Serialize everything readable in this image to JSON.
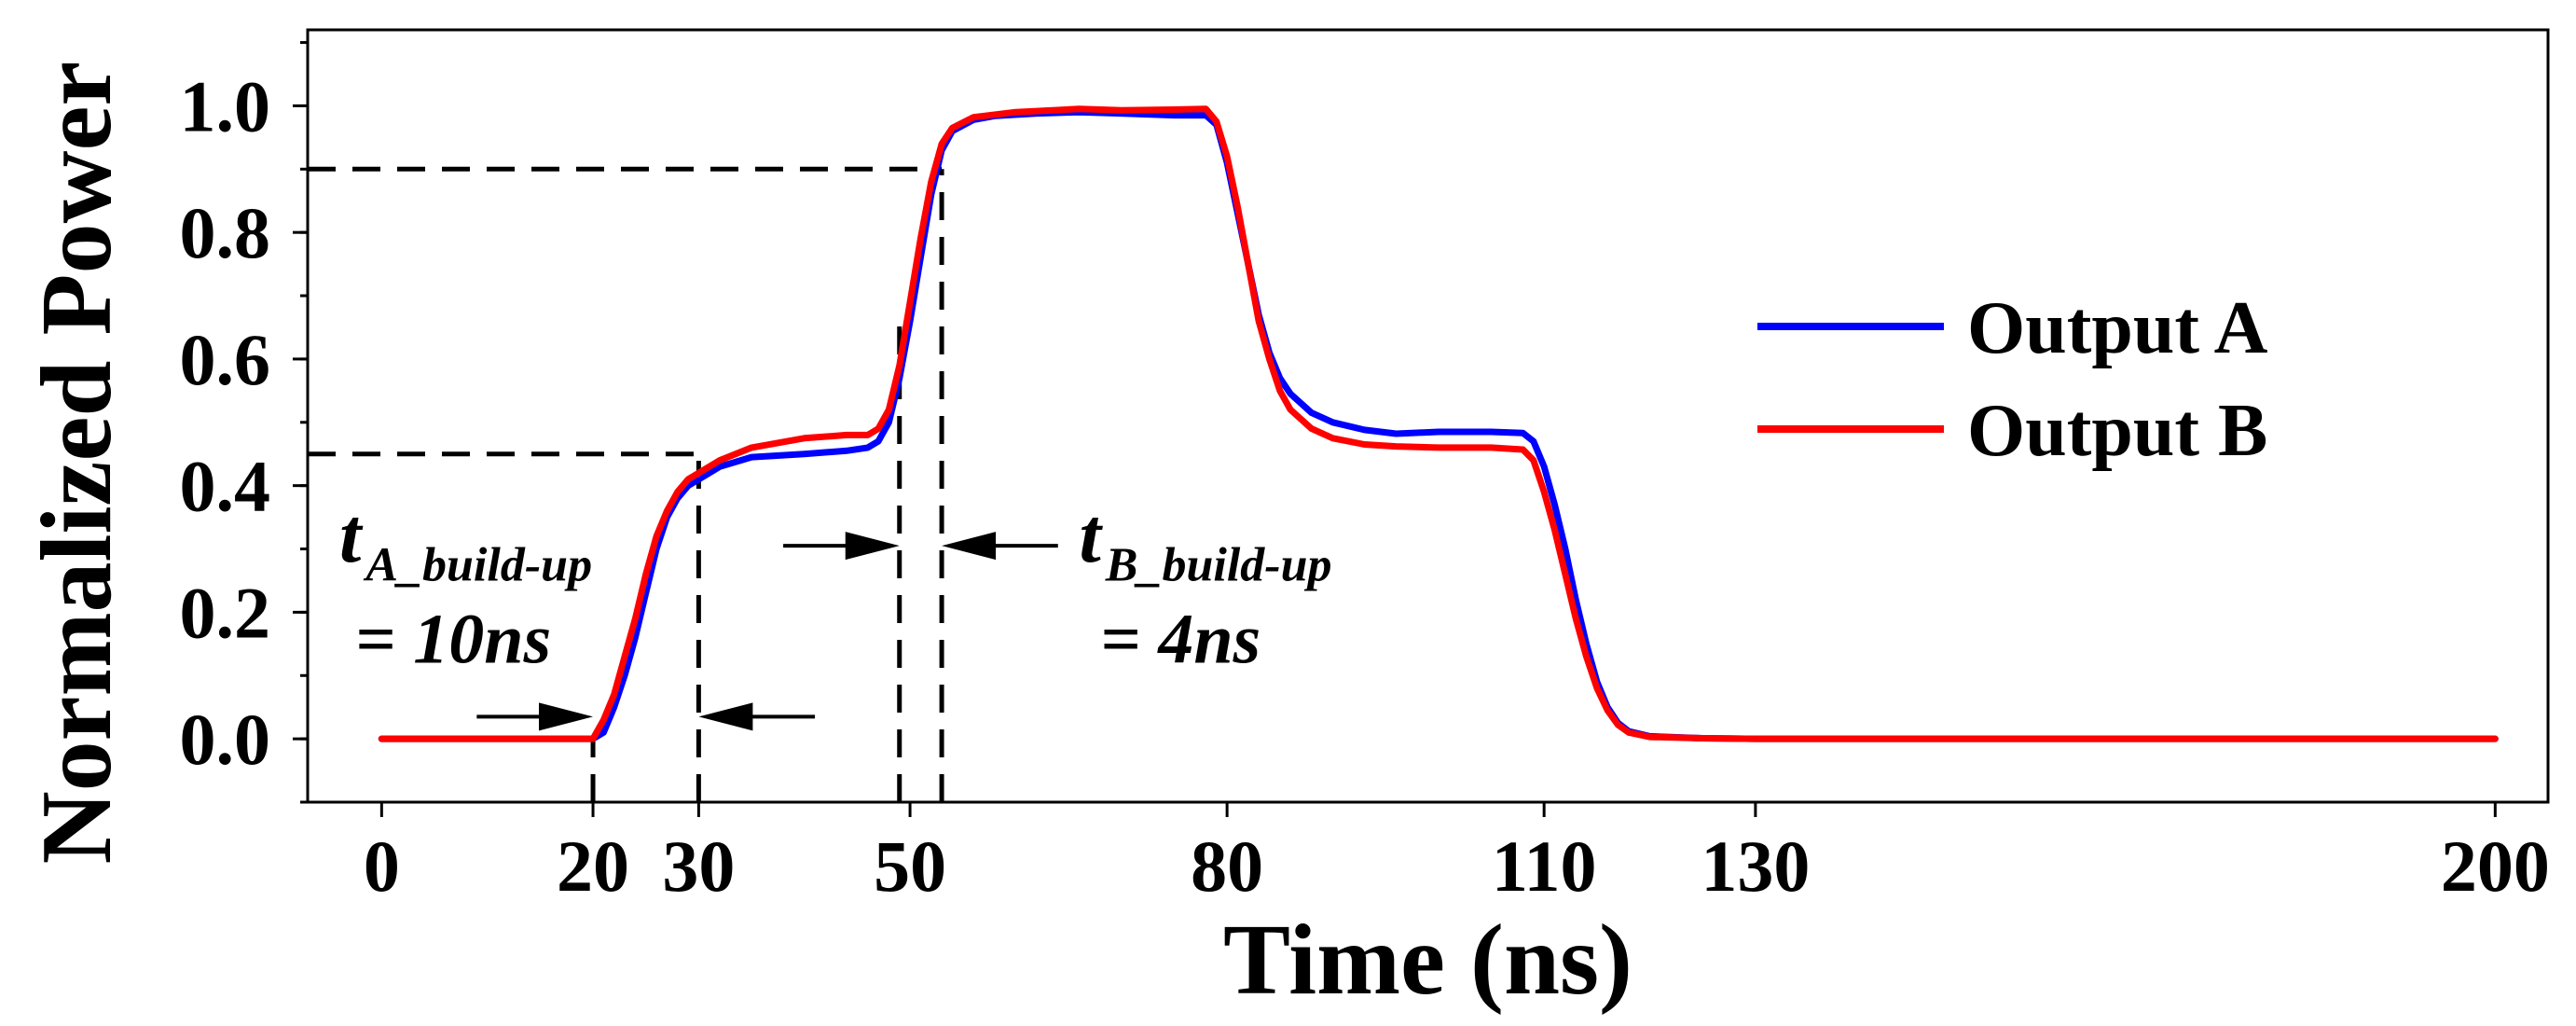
{
  "chart_data": {
    "type": "line",
    "title": "",
    "xlabel": "Time (ns)",
    "ylabel": "Normalized Power",
    "xlim": [
      -7,
      205
    ],
    "ylim": [
      -0.1,
      1.12
    ],
    "x_ticks": [
      0,
      20,
      30,
      50,
      80,
      110,
      130,
      200
    ],
    "y_ticks": [
      0.0,
      0.2,
      0.4,
      0.6,
      0.8,
      1.0
    ],
    "y_tick_labels": [
      "0.0",
      "0.2",
      "0.4",
      "0.6",
      "0.8",
      "1.0"
    ],
    "legend_position": "right",
    "series": [
      {
        "name": "Output A",
        "color": "#0000ff",
        "points": [
          [
            0,
            0
          ],
          [
            19,
            0
          ],
          [
            20,
            0
          ],
          [
            21,
            0.01
          ],
          [
            22,
            0.05
          ],
          [
            23,
            0.1
          ],
          [
            24,
            0.16
          ],
          [
            25,
            0.23
          ],
          [
            26,
            0.3
          ],
          [
            27,
            0.35
          ],
          [
            28,
            0.38
          ],
          [
            29,
            0.4
          ],
          [
            30,
            0.41
          ],
          [
            32,
            0.43
          ],
          [
            35,
            0.445
          ],
          [
            40,
            0.45
          ],
          [
            44,
            0.455
          ],
          [
            46,
            0.46
          ],
          [
            47,
            0.47
          ],
          [
            48,
            0.5
          ],
          [
            49,
            0.57
          ],
          [
            50,
            0.66
          ],
          [
            51,
            0.76
          ],
          [
            52,
            0.86
          ],
          [
            53,
            0.93
          ],
          [
            54,
            0.96
          ],
          [
            56,
            0.978
          ],
          [
            58,
            0.984
          ],
          [
            62,
            0.988
          ],
          [
            66,
            0.99
          ],
          [
            70,
            0.988
          ],
          [
            75,
            0.985
          ],
          [
            78,
            0.985
          ],
          [
            79,
            0.97
          ],
          [
            80,
            0.91
          ],
          [
            81,
            0.83
          ],
          [
            82,
            0.75
          ],
          [
            83,
            0.67
          ],
          [
            84,
            0.61
          ],
          [
            85,
            0.57
          ],
          [
            86,
            0.545
          ],
          [
            88,
            0.515
          ],
          [
            90,
            0.5
          ],
          [
            93,
            0.488
          ],
          [
            96,
            0.482
          ],
          [
            100,
            0.485
          ],
          [
            105,
            0.485
          ],
          [
            108,
            0.483
          ],
          [
            109,
            0.47
          ],
          [
            110,
            0.43
          ],
          [
            111,
            0.37
          ],
          [
            112,
            0.3
          ],
          [
            113,
            0.22
          ],
          [
            114,
            0.15
          ],
          [
            115,
            0.09
          ],
          [
            116,
            0.05
          ],
          [
            117,
            0.025
          ],
          [
            118,
            0.012
          ],
          [
            120,
            0.004
          ],
          [
            125,
            0.001
          ],
          [
            130,
            0
          ],
          [
            200,
            0
          ]
        ]
      },
      {
        "name": "Output B",
        "color": "#ff0000",
        "points": [
          [
            0,
            0
          ],
          [
            20,
            0
          ],
          [
            21,
            0.03
          ],
          [
            22,
            0.07
          ],
          [
            23,
            0.13
          ],
          [
            24,
            0.19
          ],
          [
            25,
            0.26
          ],
          [
            26,
            0.32
          ],
          [
            27,
            0.36
          ],
          [
            28,
            0.39
          ],
          [
            29,
            0.41
          ],
          [
            30,
            0.42
          ],
          [
            32,
            0.44
          ],
          [
            35,
            0.46
          ],
          [
            40,
            0.475
          ],
          [
            44,
            0.48
          ],
          [
            46,
            0.48
          ],
          [
            47,
            0.49
          ],
          [
            48,
            0.52
          ],
          [
            49,
            0.59
          ],
          [
            50,
            0.69
          ],
          [
            51,
            0.79
          ],
          [
            52,
            0.88
          ],
          [
            53,
            0.94
          ],
          [
            54,
            0.965
          ],
          [
            56,
            0.982
          ],
          [
            60,
            0.99
          ],
          [
            66,
            0.995
          ],
          [
            70,
            0.993
          ],
          [
            75,
            0.994
          ],
          [
            78,
            0.995
          ],
          [
            79,
            0.975
          ],
          [
            80,
            0.92
          ],
          [
            81,
            0.84
          ],
          [
            82,
            0.75
          ],
          [
            83,
            0.66
          ],
          [
            84,
            0.6
          ],
          [
            85,
            0.55
          ],
          [
            86,
            0.52
          ],
          [
            88,
            0.49
          ],
          [
            90,
            0.475
          ],
          [
            93,
            0.465
          ],
          [
            96,
            0.462
          ],
          [
            100,
            0.46
          ],
          [
            105,
            0.46
          ],
          [
            108,
            0.457
          ],
          [
            109,
            0.44
          ],
          [
            110,
            0.39
          ],
          [
            111,
            0.33
          ],
          [
            112,
            0.26
          ],
          [
            113,
            0.19
          ],
          [
            114,
            0.13
          ],
          [
            115,
            0.08
          ],
          [
            116,
            0.045
          ],
          [
            117,
            0.022
          ],
          [
            118,
            0.01
          ],
          [
            120,
            0.003
          ],
          [
            125,
            0.001
          ],
          [
            130,
            0
          ],
          [
            200,
            0
          ]
        ]
      }
    ],
    "reference_lines": [
      {
        "name": "level-0.45",
        "points": [
          [
            -7,
            0.45
          ],
          [
            30,
            0.45
          ]
        ]
      },
      {
        "name": "level-0.90",
        "points": [
          [
            -7,
            0.9
          ],
          [
            53,
            0.9
          ]
        ]
      },
      {
        "name": "v-20",
        "points": [
          [
            20,
            -0.1
          ],
          [
            20,
            0.0
          ]
        ]
      },
      {
        "name": "v-30",
        "points": [
          [
            30,
            -0.1
          ],
          [
            30,
            0.45
          ]
        ]
      },
      {
        "name": "v-49",
        "points": [
          [
            49,
            -0.1
          ],
          [
            49,
            0.66
          ]
        ]
      },
      {
        "name": "v-53",
        "points": [
          [
            53,
            -0.1
          ],
          [
            53,
            0.9
          ]
        ]
      }
    ],
    "arrows": [
      {
        "name": "arrow-a-left",
        "from": [
          9,
          0.035
        ],
        "to": [
          20,
          0.035
        ]
      },
      {
        "name": "arrow-a-right",
        "from": [
          41,
          0.035
        ],
        "to": [
          30,
          0.035
        ]
      },
      {
        "name": "arrow-b-left",
        "from": [
          38,
          0.305
        ],
        "to": [
          49,
          0.305
        ]
      },
      {
        "name": "arrow-b-right",
        "from": [
          64,
          0.305
        ],
        "to": [
          53,
          0.305
        ]
      }
    ],
    "annotations": [
      {
        "name": "t-a-main",
        "text": "t",
        "x": -4,
        "y": 0.28
      },
      {
        "name": "t-a-sub",
        "text": "A_build-up",
        "x": -1.5,
        "y": 0.25
      },
      {
        "name": "t-a-value",
        "text": "= 10ns",
        "x": -2.5,
        "y": 0.12
      },
      {
        "name": "t-b-main",
        "text": "t",
        "x": 66,
        "y": 0.28
      },
      {
        "name": "t-b-sub",
        "text": "B_build-up",
        "x": 68.5,
        "y": 0.25
      },
      {
        "name": "t-b-value",
        "text": "= 4ns",
        "x": 68,
        "y": 0.12
      }
    ],
    "legend": [
      {
        "name": "Output A",
        "color": "#0000ff"
      },
      {
        "name": "Output B",
        "color": "#ff0000"
      }
    ]
  }
}
